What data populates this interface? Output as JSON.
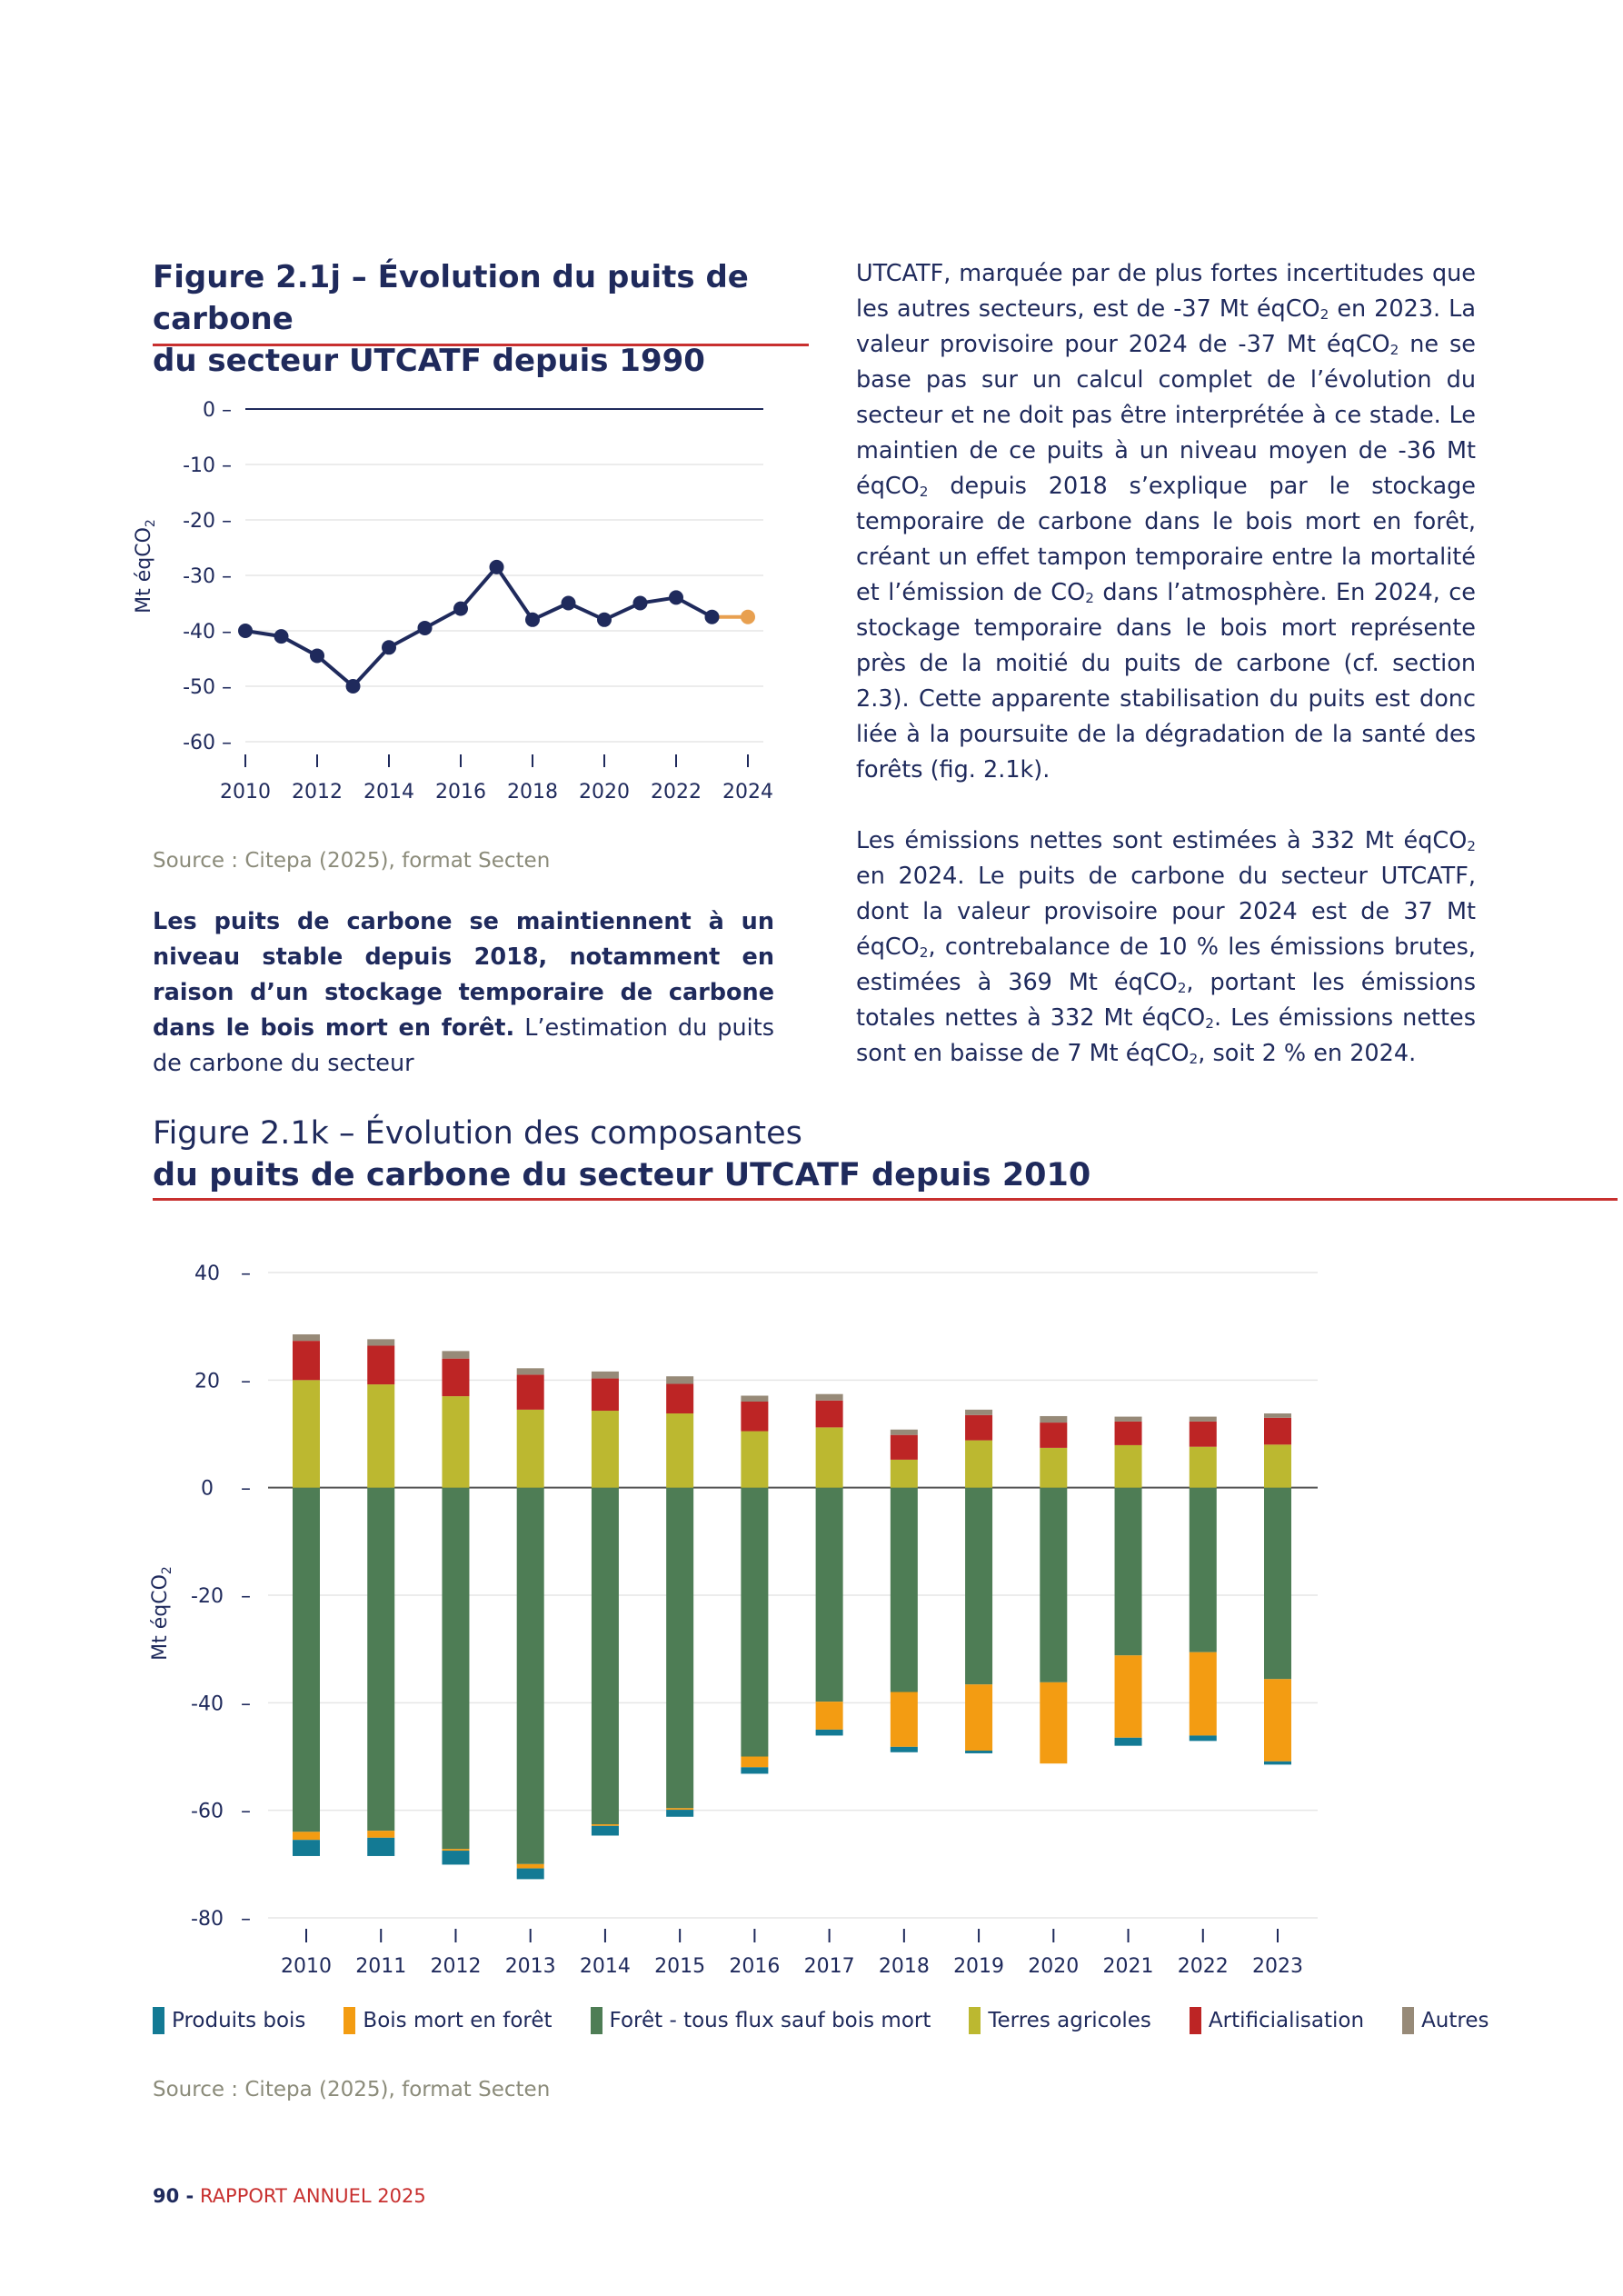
{
  "figure_j": {
    "title_line1": "Figure 2.1j – Évolution du puits de carbone",
    "title_line2": "du secteur UTCATF depuis 1990",
    "source": "Source : Citepa (2025), format Secten"
  },
  "figure_k": {
    "title_line1": "Figure 2.1k – Évolution des composantes",
    "title_line2": "du puits de carbone du secteur UTCATF depuis 2010",
    "source": "Source : Citepa (2025), format Secten"
  },
  "left_text": {
    "lead": "Les puits de carbone se maintiennent à un niveau stable depuis 2018, notamment en raison d’un stockage temporaire de carbone dans le bois mort en forêt.",
    "rest": "L’estimation du puits de carbone du secteur"
  },
  "right_text": {
    "p1_a": "UTCATF, marquée par de plus fortes incertitudes que les autres secteurs, est de -37 Mt éqCO",
    "p1_b": " en 2023. La valeur provisoire pour 2024 de -37 Mt éqCO",
    "p1_c": " ne se base pas sur un calcul complet de l’évolution du secteur et ne doit pas être interprétée à ce stade. Le maintien de ce puits à un niveau moyen de -36 Mt éqCO",
    "p1_d": " depuis 2018 s’explique par le stockage temporaire de carbone dans le bois mort en forêt, créant un effet tampon temporaire entre la mortalité et l’émission de CO",
    "p1_e": " dans l’atmosphère. En 2024, ce stockage temporaire dans le bois mort représente près de la moitié du puits de carbone (cf. section 2.3). Cette apparente stabilisation du puits est donc liée à la poursuite de la dégradation de la santé des forêts (fig. 2.1k).",
    "p2_a": "Les émissions nettes sont estimées à 332 Mt éqCO",
    "p2_b": " en 2024. Le puits de carbone du secteur UTCATF, dont la valeur provisoire pour 2024 est de 37 Mt éqCO",
    "p2_c": ", contrebalance de 10 % les émissions brutes, estimées à 369 Mt éqCO",
    "p2_d": ", portant les émissions totales nettes à 332 Mt éqCO",
    "p2_e": ". Les émissions nettes sont en baisse de 7 Mt éqCO",
    "p2_f": ", soit 2 % en 2024.",
    "sub2": "2"
  },
  "footer": {
    "page_number": "90 -",
    "report": "RAPPORT ANNUEL 2025"
  },
  "chart_data": [
    {
      "type": "line",
      "ylabel": "Mt éqCO2",
      "ylim": [
        -60,
        0
      ],
      "yticks": [
        0,
        -10,
        -20,
        -30,
        -40,
        -50,
        -60
      ],
      "xticks": [
        2010,
        2012,
        2014,
        2016,
        2018,
        2020,
        2022,
        2024
      ],
      "grid": true,
      "series": [
        {
          "color": "#1f2a5c",
          "x": [
            2010,
            2011,
            2012,
            2013,
            2014,
            2015,
            2016,
            2017,
            2018,
            2019,
            2020,
            2021,
            2022,
            2023
          ],
          "y": [
            -40,
            -41,
            -44.5,
            -50,
            -43,
            -39.5,
            -36,
            -28.5,
            -38,
            -35,
            -38,
            -35,
            -34,
            -37.5
          ]
        },
        {
          "color": "#e8a050",
          "x": [
            2023,
            2024
          ],
          "y": [
            -37.5,
            -37.5
          ]
        }
      ]
    },
    {
      "type": "bar",
      "stacked": true,
      "ylabel": "Mt éqCO2",
      "ylim": [
        -80,
        40
      ],
      "yticks": [
        40,
        20,
        0,
        -20,
        -40,
        -60,
        -80
      ],
      "grid": true,
      "legend_position": "bottom",
      "categories": [
        "2010",
        "2011",
        "2012",
        "2013",
        "2014",
        "2015",
        "2016",
        "2017",
        "2018",
        "2019",
        "2020",
        "2021",
        "2022",
        "2023"
      ],
      "series": [
        {
          "name": "Produits bois",
          "color": "#137a94",
          "values": [
            -3.0,
            -3.4,
            -2.6,
            -2.0,
            -1.8,
            -1.3,
            -1.2,
            -1.1,
            -1.0,
            -0.5,
            0.0,
            -1.5,
            -1.0,
            -0.6
          ]
        },
        {
          "name": "Bois mort en forêt",
          "color": "#f39c12",
          "values": [
            -1.5,
            -1.3,
            -0.3,
            -0.8,
            -0.3,
            -0.3,
            -2.0,
            -5.2,
            -10.2,
            -12.3,
            -15.1,
            -15.3,
            -15.5,
            -15.3
          ]
        },
        {
          "name": "Forêt - tous flux sauf bois mort",
          "color": "#4e7d55",
          "values": [
            -64.0,
            -63.8,
            -67.2,
            -70.0,
            -62.6,
            -59.6,
            -50.0,
            -39.8,
            -38.0,
            -36.6,
            -36.2,
            -31.2,
            -30.6,
            -35.6
          ]
        },
        {
          "name": "Terres agricoles",
          "color": "#bcb830",
          "values": [
            20.0,
            19.2,
            17.0,
            14.5,
            14.3,
            13.8,
            10.5,
            11.2,
            5.2,
            8.8,
            7.4,
            7.9,
            7.6,
            8.0
          ]
        },
        {
          "name": "Artificialisation",
          "color": "#bd2525",
          "values": [
            7.3,
            7.2,
            7.0,
            6.5,
            6.0,
            5.5,
            5.5,
            5.0,
            4.6,
            4.7,
            4.7,
            4.4,
            4.7,
            5.0
          ]
        },
        {
          "name": "Autres",
          "color": "#978a78",
          "values": [
            1.2,
            1.2,
            1.4,
            1.2,
            1.3,
            1.4,
            1.1,
            1.2,
            1.0,
            1.0,
            1.2,
            0.9,
            0.9,
            0.8
          ]
        }
      ]
    }
  ]
}
